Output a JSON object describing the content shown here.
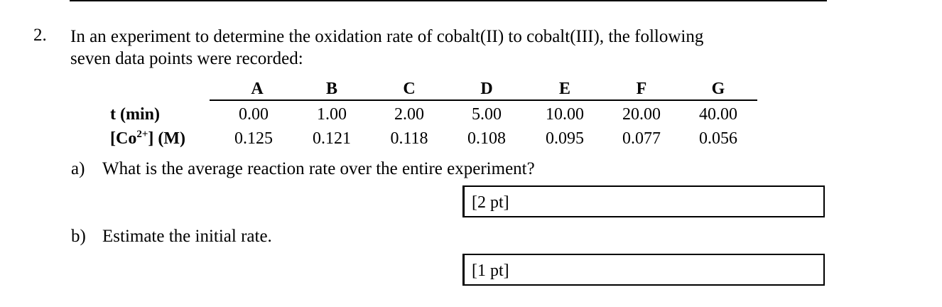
{
  "question": {
    "number": "2.",
    "text_line1": "In an experiment to determine the oxidation rate of cobalt(II) to cobalt(III), the following",
    "text_line2": "seven data points were recorded:"
  },
  "table": {
    "column_headers": [
      "A",
      "B",
      "C",
      "D",
      "E",
      "F",
      "G"
    ],
    "rows": [
      {
        "label": "t (min)",
        "values": [
          "0.00",
          "1.00",
          "2.00",
          "5.00",
          "10.00",
          "20.00",
          "40.00"
        ]
      },
      {
        "label_prefix": "[Co",
        "label_sup": "2+",
        "label_suffix": "] (M)",
        "values": [
          "0.125",
          "0.121",
          "0.118",
          "0.108",
          "0.095",
          "0.077",
          "0.056"
        ]
      }
    ]
  },
  "parts": [
    {
      "letter": "a)",
      "text": "What is the average reaction rate over the entire experiment?",
      "points": "[2 pt]"
    },
    {
      "letter": "b)",
      "text": "Estimate the initial rate.",
      "points": "[1 pt]"
    }
  ]
}
